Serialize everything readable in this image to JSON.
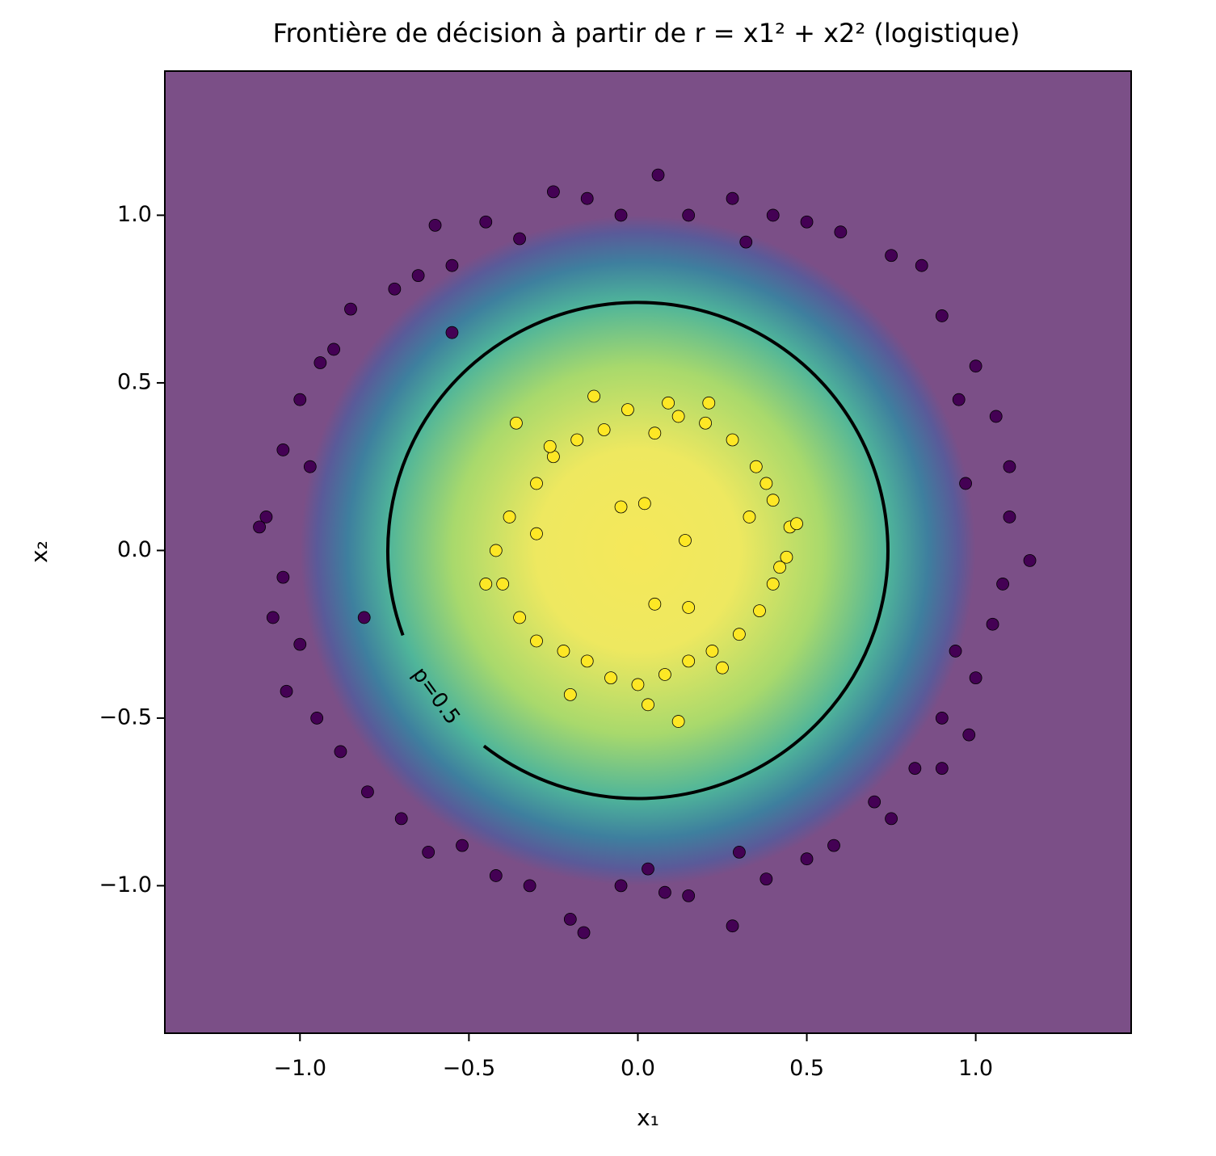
{
  "chart_data": {
    "type": "scatter",
    "title": "Frontière de décision à partir de r = x1² + x2² (logistique)",
    "xlabel": "x₁",
    "ylabel": "x₂",
    "xlim": [
      -1.4,
      1.46
    ],
    "ylim": [
      -1.44,
      1.43
    ],
    "xticks": [
      {
        "value": -1.0,
        "label": "−1.0"
      },
      {
        "value": -0.5,
        "label": "−0.5"
      },
      {
        "value": 0,
        "label": "0.0"
      },
      {
        "value": 0.5,
        "label": "0.5"
      },
      {
        "value": 1.0,
        "label": "1.0"
      }
    ],
    "yticks": [
      {
        "value": -1.0,
        "label": "−1.0"
      },
      {
        "value": -0.5,
        "label": "−0.5"
      },
      {
        "value": 0,
        "label": "0.0"
      },
      {
        "value": 0.5,
        "label": "0.5"
      },
      {
        "value": 1.0,
        "label": "1.0"
      }
    ],
    "background_color": "#7b4f87",
    "contour": {
      "label": "p=0.5",
      "radius": 0.74
    },
    "series": [
      {
        "color": "#440154",
        "x": [
          1.16,
          1.1,
          1.06,
          1.0,
          0.95,
          0.9,
          0.84,
          0.75,
          0.6,
          0.5,
          0.4,
          0.28,
          0.15,
          0.06,
          -0.05,
          -0.15,
          -0.25,
          -0.35,
          -0.45,
          -0.55,
          -0.65,
          -0.72,
          -0.85,
          -0.9,
          -0.94,
          -1.0,
          -1.05,
          -1.1,
          -1.12,
          -1.05,
          -1.08,
          -1.0,
          -1.04,
          -0.95,
          -0.88,
          -0.8,
          -0.7,
          -0.62,
          -0.52,
          -0.42,
          -0.32,
          -0.2,
          -0.16,
          -0.05,
          0.03,
          0.08,
          0.15,
          0.28,
          0.38,
          0.5,
          0.58,
          0.7,
          0.75,
          0.82,
          0.9,
          0.98,
          1.0,
          1.05,
          1.08,
          0.94,
          0.97,
          1.1,
          -0.81,
          -0.55,
          -0.6,
          0.32,
          -0.97,
          0.9,
          0.3
        ],
        "y": [
          -0.03,
          0.1,
          0.4,
          0.55,
          0.45,
          0.7,
          0.85,
          0.88,
          0.95,
          0.98,
          1.0,
          1.05,
          1.0,
          1.12,
          1.0,
          1.05,
          1.07,
          0.93,
          0.98,
          0.85,
          0.82,
          0.78,
          0.72,
          0.6,
          0.56,
          0.45,
          0.3,
          0.1,
          0.07,
          -0.08,
          -0.2,
          -0.28,
          -0.42,
          -0.5,
          -0.6,
          -0.72,
          -0.8,
          -0.9,
          -0.88,
          -0.97,
          -1.0,
          -1.1,
          -1.14,
          -1.0,
          -0.95,
          -1.02,
          -1.03,
          -1.12,
          -0.98,
          -0.92,
          -0.88,
          -0.75,
          -0.8,
          -0.65,
          -0.5,
          -0.55,
          -0.38,
          -0.22,
          -0.1,
          -0.3,
          0.2,
          0.25,
          -0.2,
          0.65,
          0.97,
          0.92,
          0.25,
          -0.65,
          -0.9
        ]
      },
      {
        "color": "#fde725",
        "x": [
          0.45,
          0.42,
          0.4,
          0.35,
          0.28,
          0.2,
          0.12,
          0.05,
          -0.03,
          -0.1,
          -0.18,
          -0.25,
          -0.3,
          -0.38,
          -0.42,
          -0.4,
          -0.35,
          -0.3,
          -0.22,
          -0.15,
          -0.08,
          0.0,
          0.08,
          0.15,
          0.22,
          0.3,
          0.36,
          0.4,
          0.44,
          0.47,
          0.21,
          -0.13,
          -0.26,
          -0.45,
          0.12,
          0.14,
          -0.05,
          0.05,
          0.15,
          0.02,
          0.09,
          -0.36,
          -0.2,
          0.03,
          0.25,
          0.38,
          -0.3,
          0.33
        ],
        "y": [
          0.07,
          -0.05,
          0.15,
          0.25,
          0.33,
          0.38,
          0.4,
          0.35,
          0.42,
          0.36,
          0.33,
          0.28,
          0.2,
          0.1,
          0.0,
          -0.1,
          -0.2,
          -0.27,
          -0.3,
          -0.33,
          -0.38,
          -0.4,
          -0.37,
          -0.33,
          -0.3,
          -0.25,
          -0.18,
          -0.1,
          -0.02,
          0.08,
          0.44,
          0.46,
          0.31,
          -0.1,
          -0.51,
          0.03,
          0.13,
          -0.16,
          -0.17,
          0.14,
          0.44,
          0.38,
          -0.43,
          -0.46,
          -0.35,
          0.2,
          0.05,
          0.1
        ]
      }
    ]
  }
}
